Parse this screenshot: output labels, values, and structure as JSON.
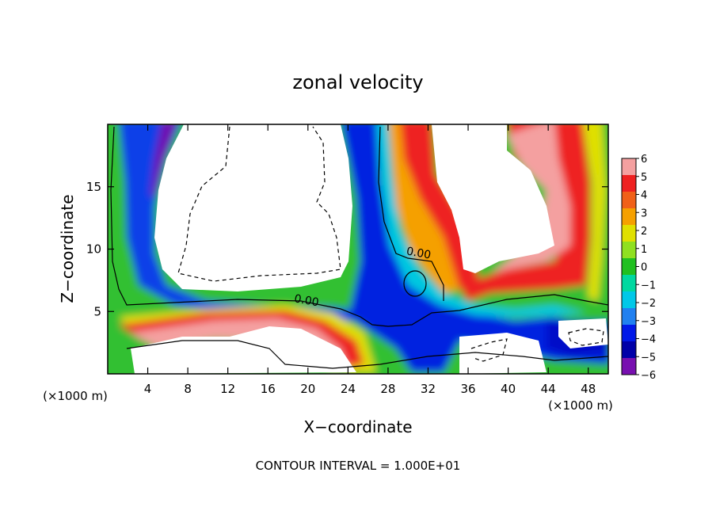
{
  "chart_data": {
    "type": "heatmap",
    "title": "zonal velocity",
    "xlabel": "X−coordinate",
    "ylabel": "Z−coordinate",
    "x_unit_left": "(×1000 m)",
    "x_unit_right": "(×1000 m)",
    "xlim": [
      0,
      50
    ],
    "ylim": [
      0,
      20
    ],
    "x_ticks": [
      4,
      8,
      12,
      16,
      20,
      24,
      28,
      32,
      36,
      40,
      44,
      48
    ],
    "y_ticks": [
      5,
      10,
      15
    ],
    "colorbar": {
      "labels": [
        "6",
        "5",
        "4",
        "3",
        "2",
        "1",
        "0",
        "−1",
        "−2",
        "−3",
        "−4",
        "−5",
        "−6"
      ],
      "values": [
        6,
        5,
        4,
        3,
        2,
        1,
        0,
        -1,
        -2,
        -3,
        -4,
        -5,
        -6
      ],
      "colors": [
        "#f4a0a0",
        "#ee2020",
        "#f06018",
        "#f5a000",
        "#e0e000",
        "#90e020",
        "#20c020",
        "#00d8a0",
        "#00c8e8",
        "#2080f0",
        "#0018e8",
        "#0000a8",
        "#7810b0"
      ]
    },
    "contour_labels": [
      {
        "text": "0.00",
        "x": 19.8,
        "y": 5.6
      },
      {
        "text": "0.00",
        "x": 31.0,
        "y": 9.4
      }
    ],
    "footnote": "CONTOUR INTERVAL = 1.000E+01"
  }
}
